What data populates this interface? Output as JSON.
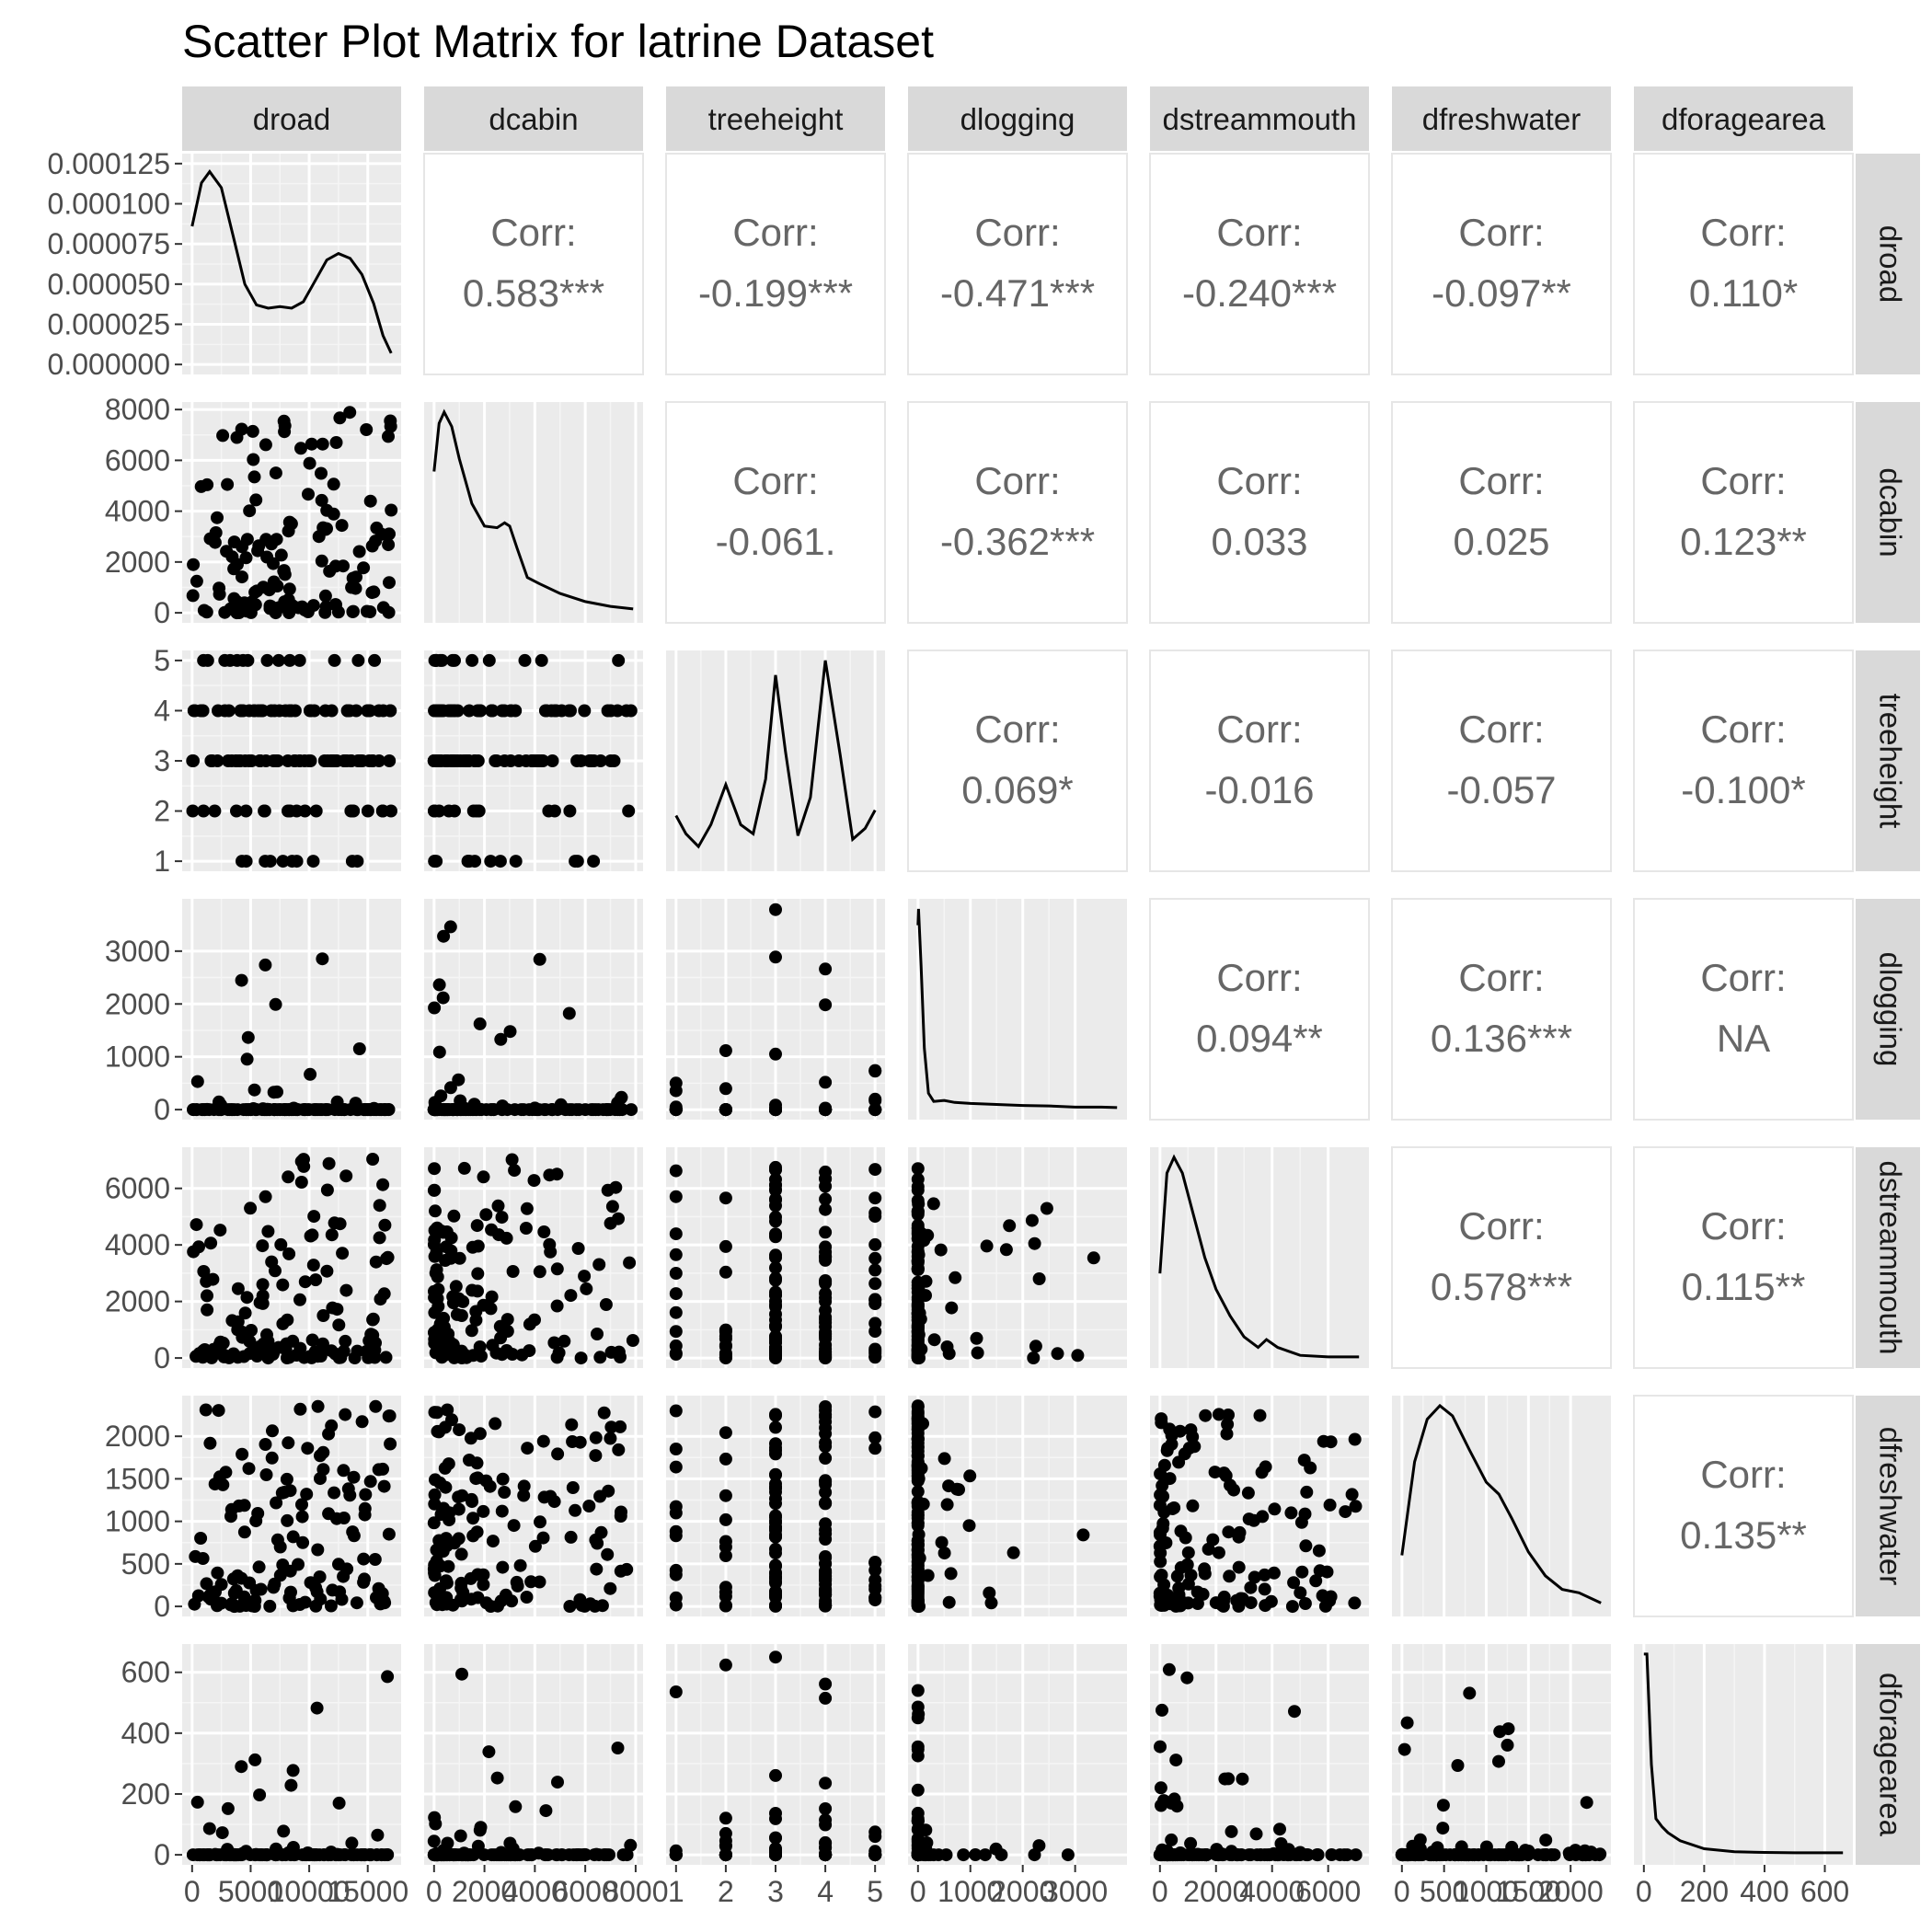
{
  "chart_data": {
    "type": "scatter",
    "title": "Scatter Plot Matrix for latrine Dataset",
    "variables": [
      "droad",
      "dcabin",
      "treeheight",
      "dlogging",
      "dstreammouth",
      "dfreshwater",
      "dforagearea"
    ],
    "ranges": {
      "droad": [
        0,
        17000
      ],
      "dcabin": [
        0,
        7900
      ],
      "treeheight": [
        1,
        5
      ],
      "dlogging": [
        0,
        3800
      ],
      "dstreammouth": [
        0,
        7100
      ],
      "dfreshwater": [
        0,
        2360
      ],
      "dforagearea": [
        0,
        660
      ]
    },
    "x_ticks": {
      "droad": [
        "0",
        "5000",
        "10000",
        "15000"
      ],
      "dcabin": [
        "0",
        "2000",
        "4000",
        "6000",
        "8000"
      ],
      "treeheight": [
        "1",
        "2",
        "3",
        "4",
        "5"
      ],
      "dlogging": [
        "0",
        "1000",
        "2000",
        "3000"
      ],
      "dstreammouth": [
        "0",
        "2000",
        "4000",
        "6000"
      ],
      "dfreshwater": [
        "0",
        "500",
        "1000",
        "1500",
        "2000"
      ],
      "dforagearea": [
        "0",
        "200",
        "400",
        "600"
      ]
    },
    "y_ticks": {
      "droad": [
        "0.000000",
        "0.000025",
        "0.000050",
        "0.000075",
        "0.000100",
        "0.000125"
      ],
      "dcabin": [
        "0",
        "2000",
        "4000",
        "6000",
        "8000"
      ],
      "treeheight": [
        "1",
        "2",
        "3",
        "4",
        "5"
      ],
      "dlogging": [
        "0",
        "1000",
        "2000",
        "3000"
      ],
      "dstreammouth": [
        "0",
        "2000",
        "4000",
        "6000"
      ],
      "dfreshwater": [
        "0",
        "500",
        "1000",
        "1500",
        "2000"
      ],
      "dforagearea": [
        "0",
        "200",
        "400",
        "600"
      ]
    },
    "droad_density_ylim": [
      0,
      0.000125
    ],
    "correlations": [
      {
        "row": "droad",
        "col": "dcabin",
        "label": "Corr:",
        "value": "0.583***"
      },
      {
        "row": "droad",
        "col": "treeheight",
        "label": "Corr:",
        "value": "-0.199***"
      },
      {
        "row": "droad",
        "col": "dlogging",
        "label": "Corr:",
        "value": "-0.471***"
      },
      {
        "row": "droad",
        "col": "dstreammouth",
        "label": "Corr:",
        "value": "-0.240***"
      },
      {
        "row": "droad",
        "col": "dfreshwater",
        "label": "Corr:",
        "value": "-0.097**"
      },
      {
        "row": "droad",
        "col": "dforagearea",
        "label": "Corr:",
        "value": "0.110*"
      },
      {
        "row": "dcabin",
        "col": "treeheight",
        "label": "Corr:",
        "value": "-0.061."
      },
      {
        "row": "dcabin",
        "col": "dlogging",
        "label": "Corr:",
        "value": "-0.362***"
      },
      {
        "row": "dcabin",
        "col": "dstreammouth",
        "label": "Corr:",
        "value": "0.033"
      },
      {
        "row": "dcabin",
        "col": "dfreshwater",
        "label": "Corr:",
        "value": "0.025"
      },
      {
        "row": "dcabin",
        "col": "dforagearea",
        "label": "Corr:",
        "value": "0.123**"
      },
      {
        "row": "treeheight",
        "col": "dlogging",
        "label": "Corr:",
        "value": "0.069*"
      },
      {
        "row": "treeheight",
        "col": "dstreammouth",
        "label": "Corr:",
        "value": "-0.016"
      },
      {
        "row": "treeheight",
        "col": "dfreshwater",
        "label": "Corr:",
        "value": "-0.057"
      },
      {
        "row": "treeheight",
        "col": "dforagearea",
        "label": "Corr:",
        "value": "-0.100*"
      },
      {
        "row": "dlogging",
        "col": "dstreammouth",
        "label": "Corr:",
        "value": "0.094**"
      },
      {
        "row": "dlogging",
        "col": "dfreshwater",
        "label": "Corr:",
        "value": "0.136***"
      },
      {
        "row": "dlogging",
        "col": "dforagearea",
        "label": "Corr:",
        "value": "NA"
      },
      {
        "row": "dstreammouth",
        "col": "dfreshwater",
        "label": "Corr:",
        "value": "0.578***"
      },
      {
        "row": "dstreammouth",
        "col": "dforagearea",
        "label": "Corr:",
        "value": "0.115**"
      },
      {
        "row": "dfreshwater",
        "col": "dforagearea",
        "label": "Corr:",
        "value": "0.135**"
      }
    ],
    "densities": {
      "droad": [
        [
          0,
          8.6e-05
        ],
        [
          800,
          0.000113
        ],
        [
          1500,
          0.00012
        ],
        [
          2500,
          0.00011
        ],
        [
          3500,
          8e-05
        ],
        [
          4500,
          5e-05
        ],
        [
          5500,
          3.7e-05
        ],
        [
          6500,
          3.5e-05
        ],
        [
          7500,
          3.6e-05
        ],
        [
          8500,
          3.5e-05
        ],
        [
          9500,
          3.9e-05
        ],
        [
          10500,
          5.2e-05
        ],
        [
          11500,
          6.5e-05
        ],
        [
          12500,
          6.9e-05
        ],
        [
          13500,
          6.6e-05
        ],
        [
          14500,
          5.6e-05
        ],
        [
          15500,
          3.8e-05
        ],
        [
          16300,
          1.8e-05
        ],
        [
          17000,
          7e-06
        ]
      ],
      "dcabin": [
        [
          0,
          0.00044
        ],
        [
          200,
          0.00059
        ],
        [
          400,
          0.000625
        ],
        [
          700,
          0.00058
        ],
        [
          1000,
          0.00048
        ],
        [
          1500,
          0.00034
        ],
        [
          2000,
          0.00027
        ],
        [
          2500,
          0.000265
        ],
        [
          2800,
          0.00028
        ],
        [
          3000,
          0.00027
        ],
        [
          3300,
          0.0002
        ],
        [
          3700,
          0.00011
        ],
        [
          4200,
          9e-05
        ],
        [
          5000,
          6e-05
        ],
        [
          6000,
          3.5e-05
        ],
        [
          7000,
          2e-05
        ],
        [
          7900,
          1.2e-05
        ]
      ],
      "treeheight": [
        [
          1,
          0.25
        ],
        [
          1.2,
          0.15
        ],
        [
          1.45,
          0.08
        ],
        [
          1.7,
          0.2
        ],
        [
          2,
          0.42
        ],
        [
          2.3,
          0.2
        ],
        [
          2.55,
          0.15
        ],
        [
          2.8,
          0.45
        ],
        [
          3,
          1.02
        ],
        [
          3.2,
          0.6
        ],
        [
          3.45,
          0.14
        ],
        [
          3.7,
          0.35
        ],
        [
          4,
          1.1
        ],
        [
          4.3,
          0.58
        ],
        [
          4.55,
          0.12
        ],
        [
          4.8,
          0.18
        ],
        [
          5,
          0.28
        ]
      ],
      "dlogging": [
        [
          0,
          0.9
        ],
        [
          10,
          0.98
        ],
        [
          60,
          0.7
        ],
        [
          120,
          0.3
        ],
        [
          200,
          0.08
        ],
        [
          300,
          0.04
        ],
        [
          500,
          0.045
        ],
        [
          700,
          0.035
        ],
        [
          1000,
          0.03
        ],
        [
          1500,
          0.025
        ],
        [
          2000,
          0.02
        ],
        [
          2500,
          0.018
        ],
        [
          3000,
          0.012
        ],
        [
          3500,
          0.012
        ],
        [
          3800,
          0.01
        ]
      ],
      "dstreammouth": [
        [
          0,
          0.00016
        ],
        [
          250,
          0.00035
        ],
        [
          500,
          0.00038
        ],
        [
          800,
          0.00035
        ],
        [
          1200,
          0.00027
        ],
        [
          1600,
          0.00019
        ],
        [
          2000,
          0.00013
        ],
        [
          2500,
          8e-05
        ],
        [
          3000,
          4e-05
        ],
        [
          3500,
          2e-05
        ],
        [
          3800,
          3.5e-05
        ],
        [
          4200,
          2e-05
        ],
        [
          5000,
          5e-06
        ],
        [
          6000,
          2e-06
        ],
        [
          7100,
          2e-06
        ]
      ],
      "dfreshwater": [
        [
          0,
          0.0003
        ],
        [
          150,
          0.00085
        ],
        [
          300,
          0.0011
        ],
        [
          450,
          0.00118
        ],
        [
          600,
          0.00112
        ],
        [
          800,
          0.00092
        ],
        [
          1000,
          0.00073
        ],
        [
          1150,
          0.00066
        ],
        [
          1300,
          0.00052
        ],
        [
          1500,
          0.00032
        ],
        [
          1700,
          0.00018
        ],
        [
          1900,
          0.0001
        ],
        [
          2100,
          8e-05
        ],
        [
          2360,
          2e-05
        ]
      ],
      "dforagearea": [
        [
          0,
          0.1
        ],
        [
          10,
          0.1
        ],
        [
          25,
          0.045
        ],
        [
          40,
          0.018
        ],
        [
          60,
          0.014
        ],
        [
          80,
          0.011
        ],
        [
          120,
          0.007
        ],
        [
          200,
          0.003
        ],
        [
          300,
          0.0015
        ],
        [
          400,
          0.0012
        ],
        [
          500,
          0.001
        ],
        [
          660,
          0.001
        ]
      ]
    },
    "legend": "none",
    "grid": true
  }
}
